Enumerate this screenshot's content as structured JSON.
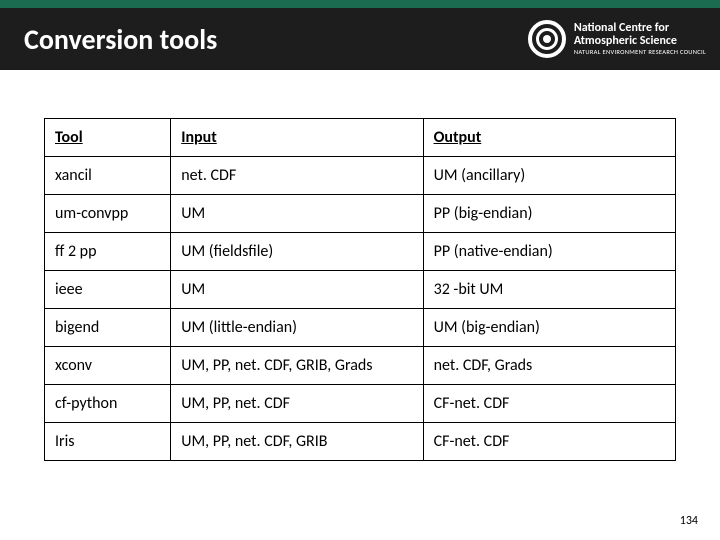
{
  "header": {
    "title": "Conversion tools",
    "logo": {
      "line1": "National Centre for",
      "line2": "Atmospheric Science",
      "line3": "NATURAL ENVIRONMENT RESEARCH COUNCIL"
    },
    "top_color": "#1a6b4f",
    "main_color": "#1d1d1d",
    "text_color": "#ffffff"
  },
  "table": {
    "columns": [
      "Tool",
      "Input",
      "Output"
    ],
    "column_widths": [
      "20%",
      "40%",
      "40%"
    ],
    "rows": [
      [
        "xancil",
        "net. CDF",
        "UM (ancillary)"
      ],
      [
        "um-convpp",
        "UM",
        "PP (big-endian)"
      ],
      [
        "ff 2 pp",
        "UM (fieldsfile)",
        "PP (native-endian)"
      ],
      [
        "ieee",
        "UM",
        "32 -bit UM"
      ],
      [
        "bigend",
        "UM (little-endian)",
        "UM (big-endian)"
      ],
      [
        "xconv",
        "UM, PP, net. CDF, GRIB, Grads",
        "net. CDF, Grads"
      ],
      [
        "cf-python",
        "UM, PP, net. CDF",
        "CF-net. CDF"
      ],
      [
        "Iris",
        "UM, PP, net. CDF, GRIB",
        "CF-net. CDF"
      ]
    ],
    "border_color": "#000000",
    "font_size": 16
  },
  "page_number": "134"
}
